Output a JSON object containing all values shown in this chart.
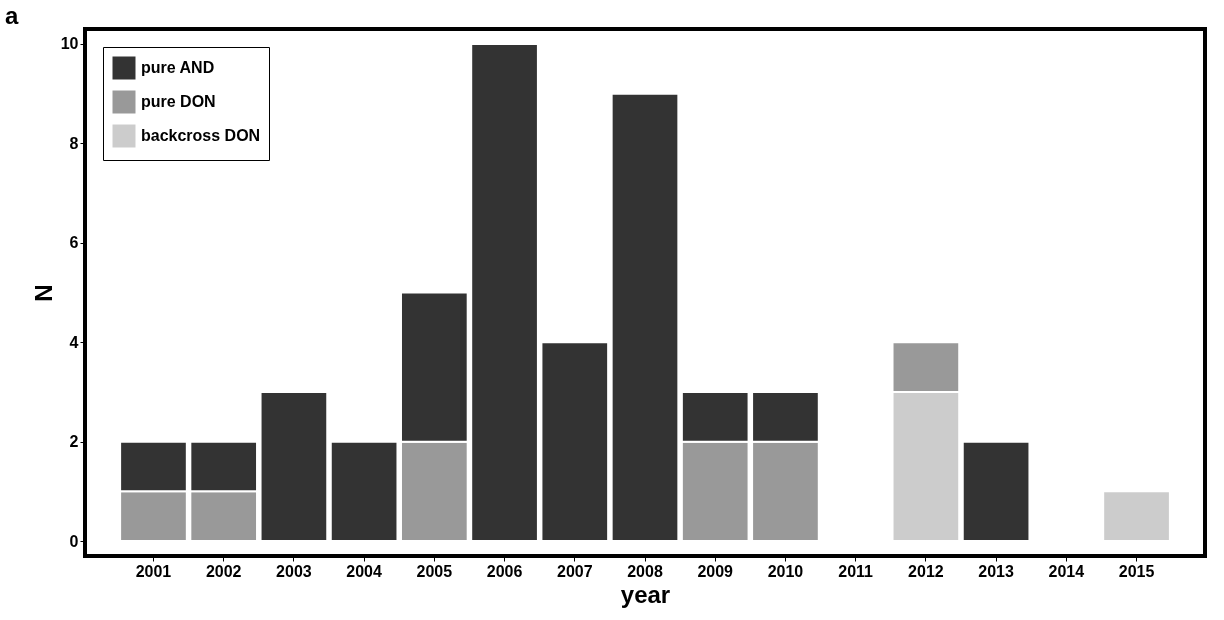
{
  "chart_data": {
    "type": "bar",
    "title": "a",
    "xlabel": "year",
    "ylabel": "N",
    "categories": [
      "2001",
      "2002",
      "2003",
      "2004",
      "2005",
      "2006",
      "2007",
      "2008",
      "2009",
      "2010",
      "2011",
      "2012",
      "2013",
      "2014",
      "2015"
    ],
    "stacked": true,
    "series": [
      {
        "name": "backcross DON",
        "color": "#cccccc",
        "values": [
          0,
          0,
          0,
          0,
          0,
          0,
          0,
          0,
          0,
          0,
          0,
          3,
          0,
          0,
          1
        ]
      },
      {
        "name": "pure DON",
        "color": "#999999",
        "values": [
          1,
          1,
          0,
          0,
          2,
          0,
          0,
          0,
          2,
          2,
          0,
          1,
          0,
          0,
          0
        ]
      },
      {
        "name": "pure AND",
        "color": "#333333",
        "values": [
          1,
          1,
          3,
          2,
          3,
          10,
          4,
          9,
          1,
          1,
          0,
          0,
          2,
          0,
          0
        ]
      }
    ],
    "ylim": [
      -0.3,
      10.3
    ],
    "yticks": [
      0,
      2,
      4,
      6,
      8,
      10
    ],
    "grid": false,
    "legend": "top left"
  }
}
